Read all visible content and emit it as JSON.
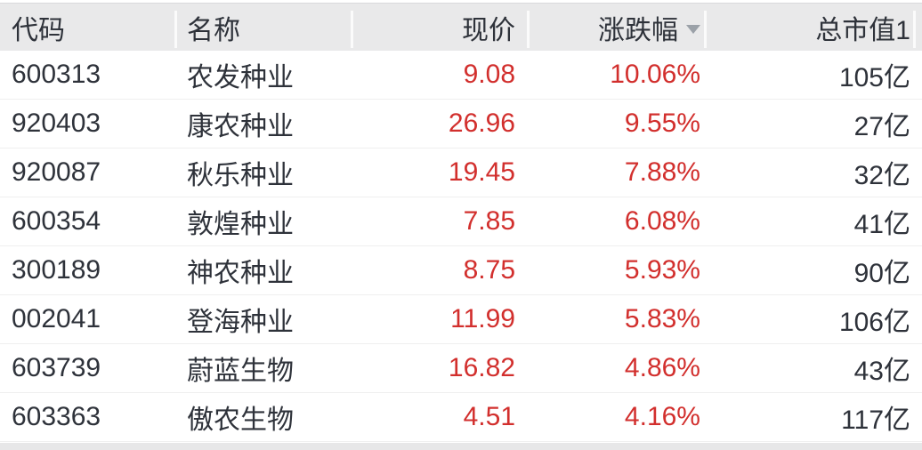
{
  "colors": {
    "up_red": "#d22f2d",
    "text_dark": "#2e323a",
    "header_bg": "#e9e9ea",
    "row_separator": "#efefef",
    "sort_arrow_gray": "#9ba1a8"
  },
  "table": {
    "columns": [
      {
        "key": "code",
        "label": "代码"
      },
      {
        "key": "name",
        "label": "名称"
      },
      {
        "key": "price",
        "label": "现价"
      },
      {
        "key": "change",
        "label": "涨跌幅",
        "sorted": "desc"
      },
      {
        "key": "mcap",
        "label": "总市值1"
      }
    ],
    "sort": {
      "column": "涨跌幅",
      "direction": "desc"
    },
    "rows": [
      {
        "code": "600313",
        "name": "农发种业",
        "price": "9.08",
        "change": "10.06%",
        "mcap": "105亿"
      },
      {
        "code": "920403",
        "name": "康农种业",
        "price": "26.96",
        "change": "9.55%",
        "mcap": "27亿"
      },
      {
        "code": "920087",
        "name": "秋乐种业",
        "price": "19.45",
        "change": "7.88%",
        "mcap": "32亿"
      },
      {
        "code": "600354",
        "name": "敦煌种业",
        "price": "7.85",
        "change": "6.08%",
        "mcap": "41亿"
      },
      {
        "code": "300189",
        "name": "神农种业",
        "price": "8.75",
        "change": "5.93%",
        "mcap": "90亿"
      },
      {
        "code": "002041",
        "name": "登海种业",
        "price": "11.99",
        "change": "5.83%",
        "mcap": "106亿"
      },
      {
        "code": "603739",
        "name": "蔚蓝生物",
        "price": "16.82",
        "change": "4.86%",
        "mcap": "43亿"
      },
      {
        "code": "603363",
        "name": "傲农生物",
        "price": "4.51",
        "change": "4.16%",
        "mcap": "117亿"
      }
    ]
  }
}
